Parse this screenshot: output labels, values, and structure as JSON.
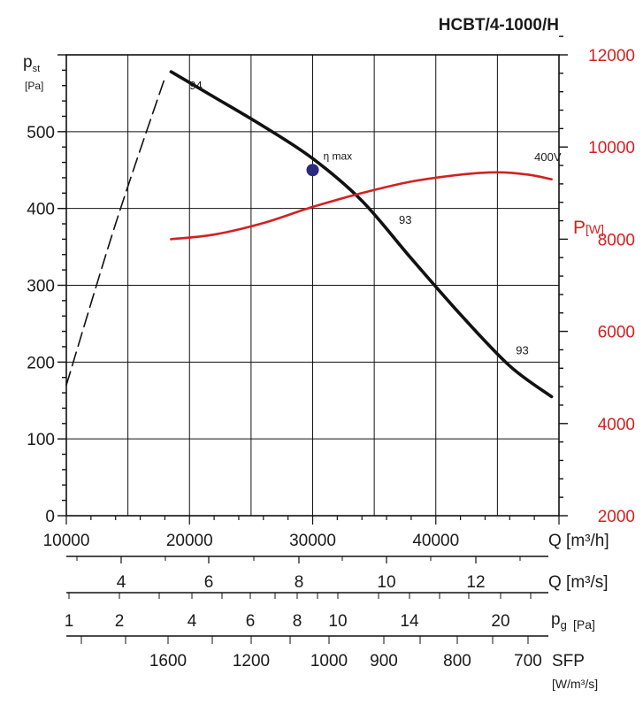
{
  "chart_data": {
    "type": "line",
    "title": "HCBT/4-1000/H",
    "left_axis": {
      "label_main": "p",
      "label_sub": "st",
      "unit": "[Pa]",
      "range": [
        0,
        600
      ],
      "ticks": [
        "0",
        "100",
        "200",
        "300",
        "400",
        "500"
      ]
    },
    "right_axis": {
      "label_main": "P",
      "unit": "[W]",
      "color": "#d42020",
      "range": [
        2000,
        12000
      ],
      "ticks": [
        "2000",
        "4000",
        "6000",
        "8000",
        "10000",
        "12000"
      ]
    },
    "x_axis": {
      "range": [
        10000,
        50000
      ],
      "ticks": [
        "10000",
        "20000",
        "30000",
        "40000"
      ],
      "label": "Q [m³/h]"
    },
    "secondary_scales": [
      {
        "name": "Q [m³/s]",
        "labels": [
          "4",
          "6",
          "8",
          "10",
          "12"
        ]
      },
      {
        "name_main": "p",
        "name_sub": "g",
        "unit": "[Pa]",
        "labels": [
          "1",
          "2",
          "4",
          "6",
          "8",
          "10",
          "14",
          "20"
        ]
      },
      {
        "name": "SFP",
        "unit": "[W/m³/s]",
        "labels": [
          "1600",
          "1200",
          "1000",
          "900",
          "800",
          "700"
        ]
      }
    ],
    "series": [
      {
        "name": "pressure",
        "color": "#111111",
        "x": [
          18500,
          22000,
          26000,
          30000,
          34000,
          38000,
          42000,
          46000,
          49400
        ],
        "y": [
          578,
          545,
          507,
          465,
          410,
          335,
          262,
          195,
          155
        ]
      },
      {
        "name": "pressure-stall",
        "color": "#111111",
        "x": [
          10000,
          14000,
          18000
        ],
        "y": [
          170,
          380,
          570
        ]
      },
      {
        "name": "400V",
        "color": "#d42020",
        "x": [
          18500,
          22000,
          26000,
          30000,
          34000,
          38000,
          42000,
          45000,
          47500,
          49400
        ],
        "y": [
          8000,
          8100,
          8350,
          8700,
          9000,
          9250,
          9400,
          9450,
          9400,
          9300
        ]
      }
    ],
    "marker": {
      "label": "η max",
      "x": 30000,
      "y": 450,
      "color": "#2a2a80"
    },
    "annotations": [
      {
        "text": "94",
        "x": 20000,
        "y": 555
      },
      {
        "text": "93",
        "x": 37000,
        "y": 380
      },
      {
        "text": "93",
        "x": 46500,
        "y": 210
      },
      {
        "text": "400V",
        "x": 48000,
        "y": 9700,
        "axis": "right"
      }
    ]
  }
}
